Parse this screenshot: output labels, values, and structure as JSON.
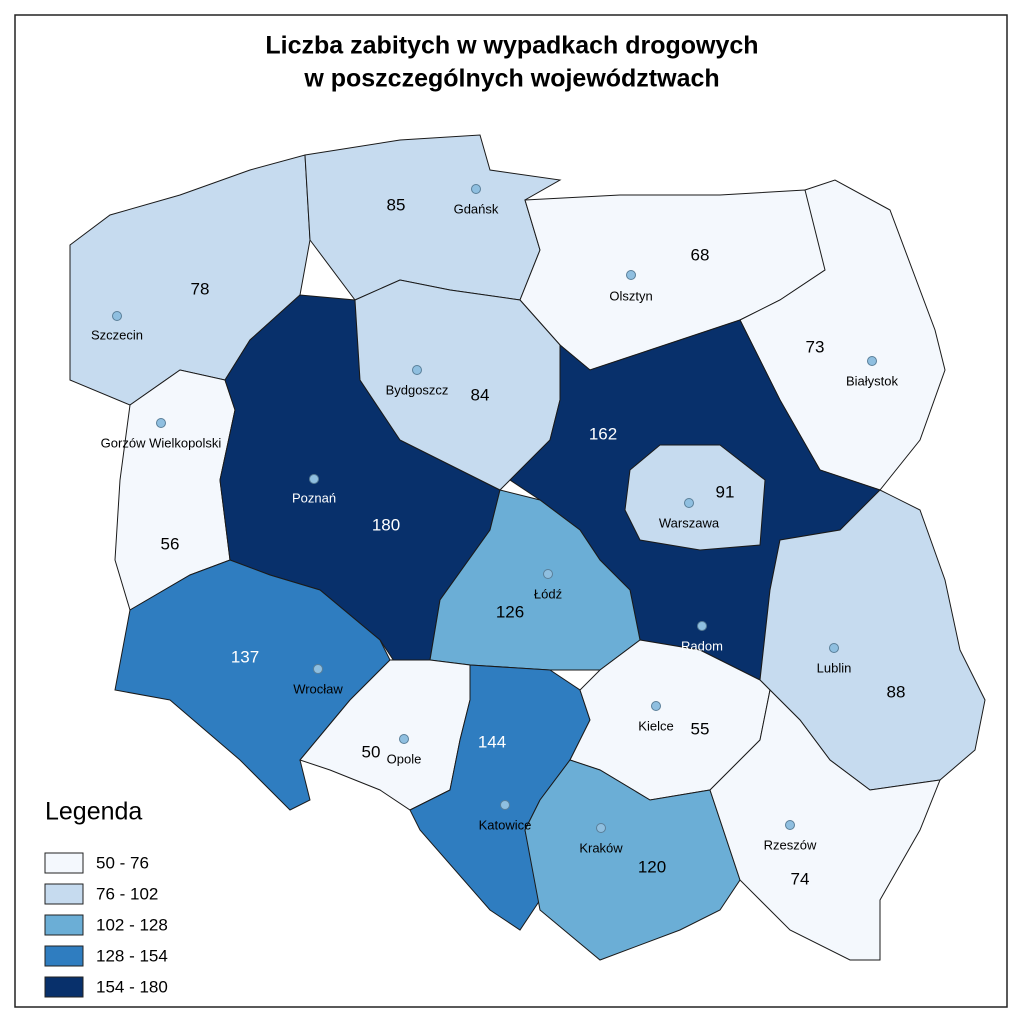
{
  "title": [
    "Liczba zabitych w wypadkach drogowych",
    "w poszczególnych województwach"
  ],
  "regions": [
    {
      "value": 78,
      "city": "Szczecin",
      "color": "#c6dbef"
    },
    {
      "value": 85,
      "city": "Gdańsk",
      "color": "#c6dbef"
    },
    {
      "value": 68,
      "city": "Olsztyn",
      "color": "#f4f8fd"
    },
    {
      "value": 73,
      "city": "Białystok",
      "color": "#f4f8fd"
    },
    {
      "value": 56,
      "city": "Gorzów Wielkopolski",
      "color": "#f4f8fd"
    },
    {
      "value": 180,
      "city": "Poznań",
      "color": "#08306b"
    },
    {
      "value": 84,
      "city": "Bydgoszcz",
      "color": "#c6dbef"
    },
    {
      "value": 162,
      "city": "Radom",
      "color": "#08306b"
    },
    {
      "value": 91,
      "city": "Warszawa",
      "color": "#c6dbef"
    },
    {
      "value": 126,
      "city": "Łódź",
      "color": "#6baed6"
    },
    {
      "value": 88,
      "city": "Lublin",
      "color": "#c6dbef"
    },
    {
      "value": 137,
      "city": "Wrocław",
      "color": "#2f7dc0"
    },
    {
      "value": 50,
      "city": "Opole",
      "color": "#f4f8fd"
    },
    {
      "value": 144,
      "city": "Katowice",
      "color": "#2f7dc0"
    },
    {
      "value": 55,
      "city": "Kielce",
      "color": "#f4f8fd"
    },
    {
      "value": 120,
      "city": "Kraków",
      "color": "#6baed6"
    },
    {
      "value": 74,
      "city": "Rzeszów",
      "color": "#f4f8fd"
    }
  ],
  "legend": {
    "title": "Legenda",
    "items": [
      {
        "label": "50 - 76",
        "color": "#f4f8fd"
      },
      {
        "label": "76 - 102",
        "color": "#c6dbef"
      },
      {
        "label": "102 - 128",
        "color": "#6baed6"
      },
      {
        "label": "128 - 154",
        "color": "#2f7dc0"
      },
      {
        "label": "154 - 180",
        "color": "#08306b"
      }
    ]
  }
}
